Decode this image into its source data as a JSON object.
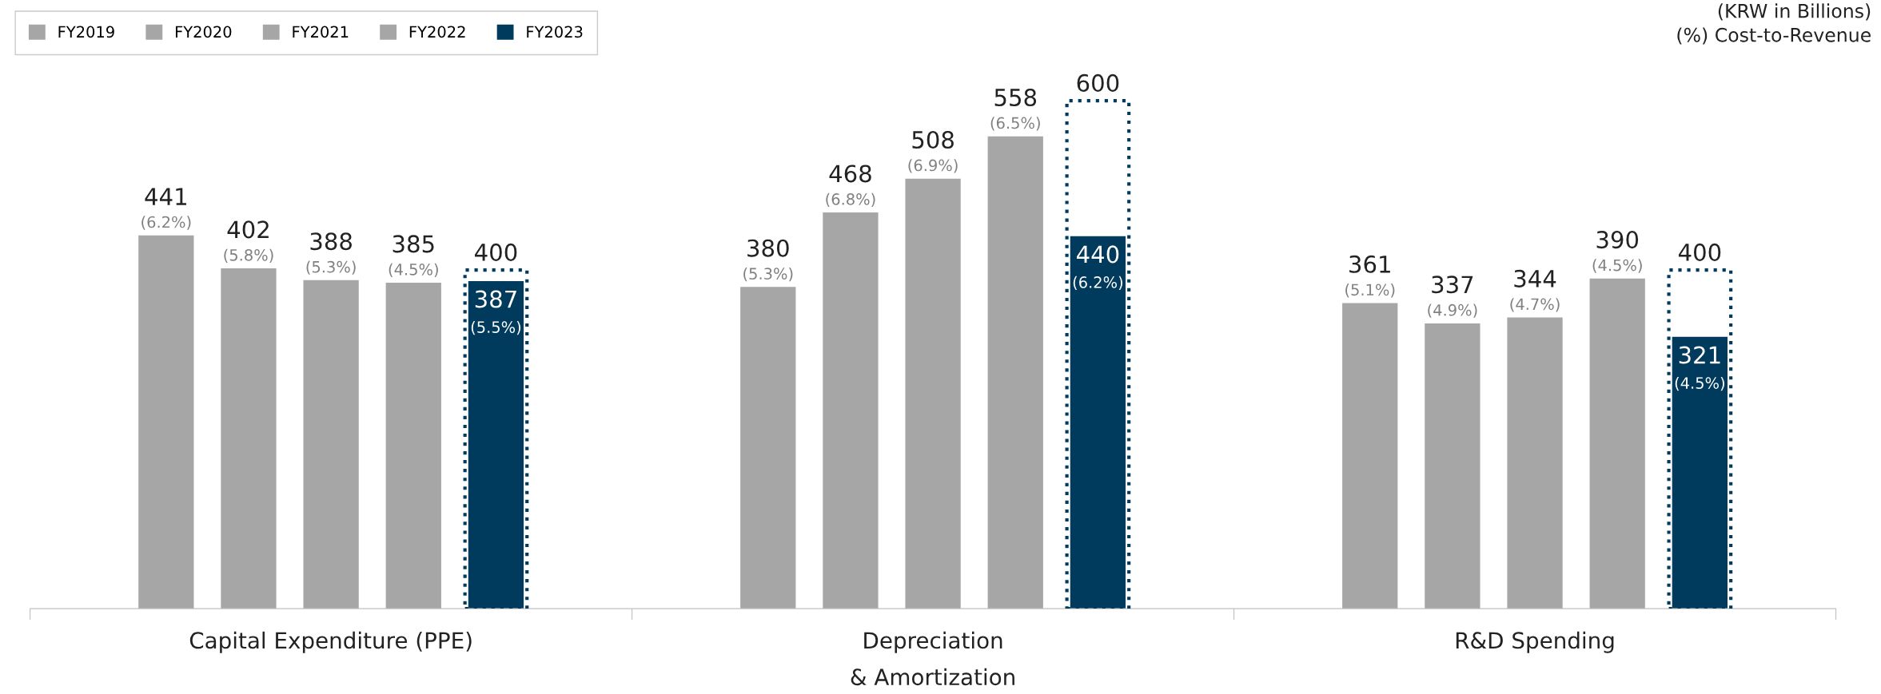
{
  "chart_data": {
    "type": "bar",
    "categories": [
      "Capital Expenditure (PPE)",
      "Depreciation\n& Amortization",
      "R&D Spending"
    ],
    "series": [
      {
        "name": "FY2019",
        "color": "#a6a6a6",
        "values": [
          441,
          380,
          361
        ],
        "value_labels": [
          "441\n(6.2%)",
          "380\n(5.3%)",
          "361\n(5.1%)"
        ]
      },
      {
        "name": "FY2020",
        "color": "#a6a6a6",
        "values": [
          402,
          468,
          337
        ],
        "value_labels": [
          "402\n(5.8%)",
          "468\n(6.8%)",
          "337\n(4.9%)"
        ]
      },
      {
        "name": "FY2021",
        "color": "#a6a6a6",
        "values": [
          388,
          508,
          344
        ],
        "value_labels": [
          "388\n(5.3%)",
          "508\n(6.9%)",
          "344\n(4.7%)"
        ]
      },
      {
        "name": "FY2022",
        "color": "#a6a6a6",
        "values": [
          385,
          558,
          390
        ],
        "value_labels": [
          "385\n(4.5%)",
          "558\n(6.5%)",
          "390\n(4.5%)"
        ]
      },
      {
        "name": "FY2023",
        "color": "#003a5c",
        "values": [
          387,
          440,
          321
        ],
        "value_labels": [
          "387\n(5.5%)",
          "440\n(6.2%)",
          "321\n(4.5%)"
        ]
      },
      {
        "color": "#003a5c",
        "line_style": "dotted",
        "values": [
          400,
          600,
          400
        ],
        "value_labels": [
          "400",
          "600",
          "400"
        ]
      }
    ],
    "annotations": [
      "(KRW in Billions)\n(%) Cost-to-Revenue"
    ],
    "legend": "top left",
    "tick_labels": "x",
    "grid": false
  }
}
